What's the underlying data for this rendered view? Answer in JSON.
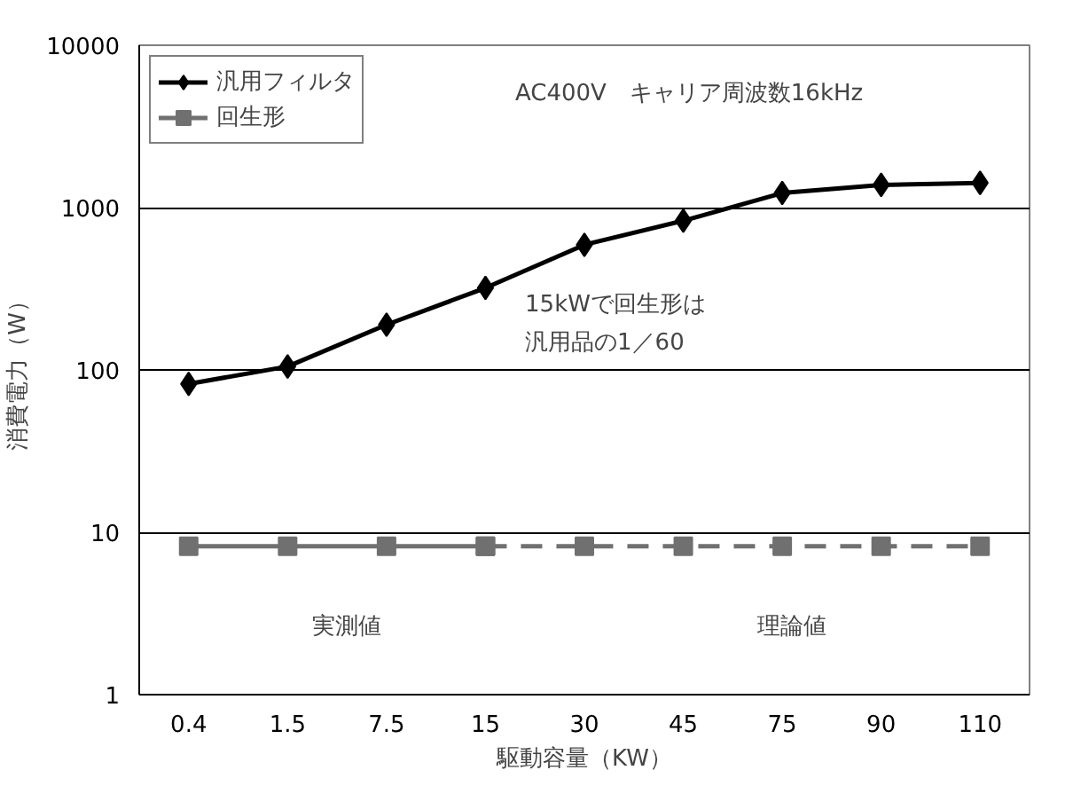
{
  "chart_data": {
    "type": "line",
    "xlabel": "駆動容量（KW）",
    "ylabel": "消費電力（W）",
    "categories": [
      "0.4",
      "1.5",
      "7.5",
      "15",
      "30",
      "45",
      "75",
      "90",
      "110"
    ],
    "series": [
      {
        "name": "汎用フィルタ",
        "color": "#000000",
        "marker": "diamond",
        "values": [
          82,
          105,
          190,
          320,
          590,
          830,
          1230,
          1380,
          1420
        ]
      },
      {
        "name": "回生形",
        "color": "#707070",
        "marker": "square",
        "values": [
          8.2,
          8.2,
          8.2,
          8.2,
          null,
          null,
          null,
          null,
          null
        ]
      },
      {
        "color": "#707070",
        "marker": "square",
        "line_style": "dashed",
        "values": [
          null,
          null,
          null,
          8.2,
          8.2,
          8.2,
          8.2,
          8.2,
          8.2
        ]
      }
    ],
    "log": true,
    "ylim": [
      1,
      10000
    ],
    "yticks": [
      1,
      10,
      100,
      1000,
      10000
    ],
    "grid": "y",
    "legend": "top left",
    "annotations": [
      "AC400V　キャリア周波数16kHz",
      "15kWで回生形は",
      "汎用品の1／60",
      "実測値",
      "理論値"
    ]
  }
}
